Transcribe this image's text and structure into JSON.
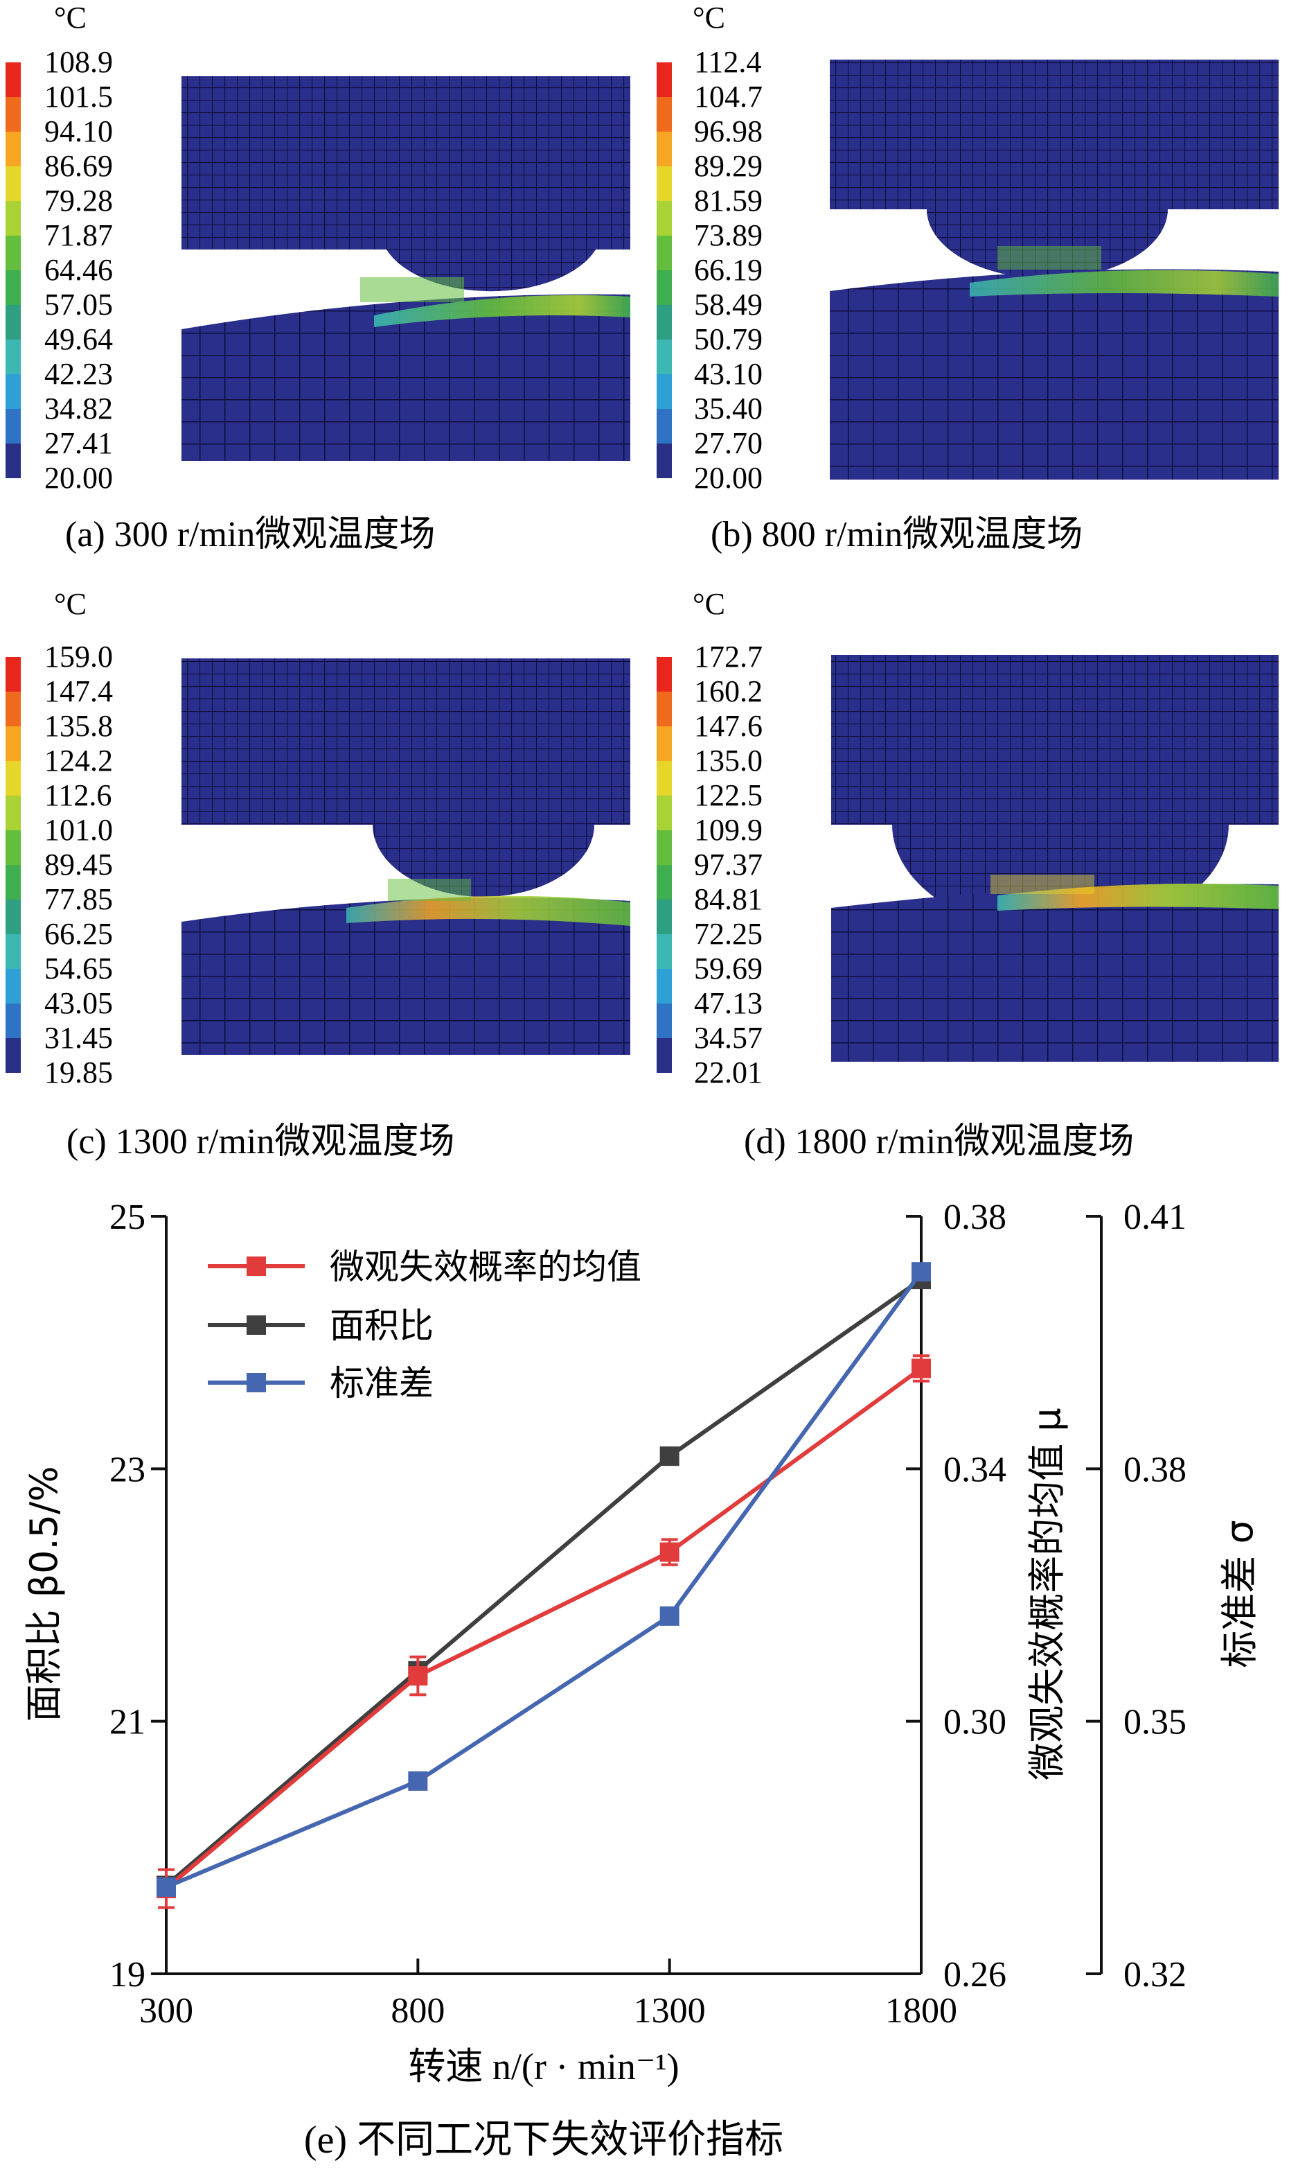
{
  "panels": [
    {
      "unit": "°C",
      "caption": "(a) 300 r/min微观温度场",
      "levels": [
        "108.9",
        "101.5",
        "94.10",
        "86.69",
        "79.28",
        "71.87",
        "64.46",
        "57.05",
        "49.64",
        "42.23",
        "34.82",
        "27.41",
        "20.00"
      ]
    },
    {
      "unit": "°C",
      "caption": "(b) 800 r/min微观温度场",
      "levels": [
        "112.4",
        "104.7",
        "96.98",
        "89.29",
        "81.59",
        "73.89",
        "66.19",
        "58.49",
        "50.79",
        "43.10",
        "35.40",
        "27.70",
        "20.00"
      ]
    },
    {
      "unit": "°C",
      "caption": "(c) 1300 r/min微观温度场",
      "levels": [
        "159.0",
        "147.4",
        "135.8",
        "124.2",
        "112.6",
        "101.0",
        "89.45",
        "77.85",
        "66.25",
        "54.65",
        "43.05",
        "31.45",
        "19.85"
      ]
    },
    {
      "unit": "°C",
      "caption": "(d) 1800 r/min微观温度场",
      "levels": [
        "172.7",
        "160.2",
        "147.6",
        "135.0",
        "122.5",
        "109.9",
        "97.37",
        "84.81",
        "72.25",
        "59.69",
        "47.13",
        "34.57",
        "22.01"
      ]
    }
  ],
  "colors": {
    "scale": [
      "#e8261c",
      "#f06a1e",
      "#f6a623",
      "#e6d629",
      "#a9d234",
      "#62be3c",
      "#3fae4e",
      "#2f9f83",
      "#3cb7b2",
      "#2fa0d5",
      "#2f74c4",
      "#3246a6",
      "#2a2f86"
    ],
    "mesh_bg": "#2b2f8c",
    "mesh_line": "#0c0f3c",
    "red": "#e23b3b",
    "dark": "#3f3f3f",
    "blue": "#4566b0"
  },
  "chart_data": {
    "type": "line",
    "title": "(e) 不同工况下失效评价指标",
    "xlabel": "转速 n/(r · min⁻¹)",
    "x": [
      300,
      800,
      1300,
      1800
    ],
    "xticks": [
      "300",
      "800",
      "1300",
      "1800"
    ],
    "axes": [
      {
        "id": "left",
        "label": "面积比 β0.5/%",
        "ylim": [
          19,
          25
        ],
        "ticks": [
          "19",
          "21",
          "23",
          "25"
        ]
      },
      {
        "id": "mid",
        "label": "微观失效概率的均值 μ",
        "ylim": [
          0.26,
          0.38
        ],
        "ticks": [
          "0.26",
          "0.30",
          "0.34",
          "0.38"
        ]
      },
      {
        "id": "right",
        "label": "标准差 σ",
        "ylim": [
          0.32,
          0.41
        ],
        "ticks": [
          "0.32",
          "0.35",
          "0.38",
          "0.41"
        ]
      }
    ],
    "series": [
      {
        "name": "微观失效概率的均值",
        "axis": "mid",
        "color": "#e23b3b",
        "values": [
          0.2735,
          0.3072,
          0.3268,
          0.3559
        ],
        "errors": [
          0.003,
          0.003,
          0.002,
          0.002
        ]
      },
      {
        "name": "面积比",
        "axis": "left",
        "color": "#3f3f3f",
        "values": [
          19.7,
          21.4,
          23.1,
          24.5
        ]
      },
      {
        "name": "标准差",
        "axis": "right",
        "color": "#4566b0",
        "values": [
          0.3303,
          0.3429,
          0.3625,
          0.4034
        ]
      }
    ],
    "legend": "top-left"
  }
}
